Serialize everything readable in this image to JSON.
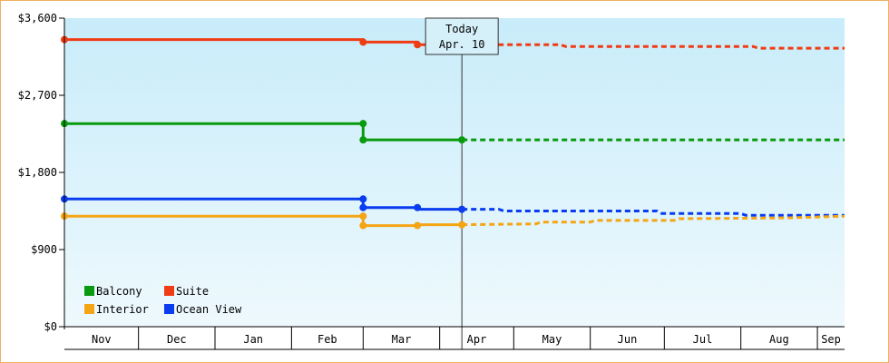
{
  "chart_data": {
    "type": "line",
    "y_ticks": [
      {
        "value": 0,
        "label": "$0"
      },
      {
        "value": 900,
        "label": "$900"
      },
      {
        "value": 1800,
        "label": "$1,800"
      },
      {
        "value": 2700,
        "label": "$2,700"
      },
      {
        "value": 3600,
        "label": "$3,600"
      }
    ],
    "ylim": [
      0,
      3600
    ],
    "xlim": [
      "2023-11-01",
      "2024-09-12"
    ],
    "months": [
      {
        "label": "Nov",
        "start": "2023-11-01",
        "end": "2023-12-01"
      },
      {
        "label": "Dec",
        "start": "2023-12-01",
        "end": "2024-01-01"
      },
      {
        "label": "Jan",
        "start": "2024-01-01",
        "end": "2024-02-01"
      },
      {
        "label": "Feb",
        "start": "2024-02-01",
        "end": "2024-03-01"
      },
      {
        "label": "Mar",
        "start": "2024-03-01",
        "end": "2024-04-01"
      },
      {
        "label": "Apr",
        "start": "2024-04-01",
        "end": "2024-05-01"
      },
      {
        "label": "May",
        "start": "2024-05-01",
        "end": "2024-06-01"
      },
      {
        "label": "Jun",
        "start": "2024-06-01",
        "end": "2024-07-01"
      },
      {
        "label": "Jul",
        "start": "2024-07-01",
        "end": "2024-08-01"
      },
      {
        "label": "Aug",
        "start": "2024-08-01",
        "end": "2024-09-01"
      },
      {
        "label": "Sep",
        "start": "2024-09-01",
        "end": "2024-09-12"
      }
    ],
    "today": {
      "date": "2024-04-10",
      "label_line1": "Today",
      "label_line2": "Apr. 10"
    },
    "legend_position": "bottom-left",
    "gradient_colors": [
      "#c8ecfa",
      "#eef9fd"
    ],
    "series": [
      {
        "name": "Suite",
        "color": "#f03c14",
        "history": [
          [
            "2023-11-01",
            3350
          ],
          [
            "2024-03-01",
            3350
          ],
          [
            "2024-03-01",
            3320
          ],
          [
            "2024-03-23",
            3320
          ],
          [
            "2024-03-23",
            3290
          ],
          [
            "2024-04-10",
            3290
          ]
        ],
        "markers": [
          [
            "2023-11-01",
            3350
          ],
          [
            "2024-03-01",
            3320
          ],
          [
            "2024-03-23",
            3290
          ],
          [
            "2024-04-10",
            3290
          ]
        ],
        "forecast": [
          [
            "2024-04-10",
            3290
          ],
          [
            "2024-05-20",
            3290
          ],
          [
            "2024-05-22",
            3270
          ],
          [
            "2024-08-06",
            3270
          ],
          [
            "2024-08-08",
            3250
          ],
          [
            "2024-09-12",
            3250
          ]
        ]
      },
      {
        "name": "Balcony",
        "color": "#0a9a10",
        "history": [
          [
            "2023-11-01",
            2370
          ],
          [
            "2024-03-01",
            2370
          ],
          [
            "2024-03-01",
            2180
          ],
          [
            "2024-04-10",
            2180
          ]
        ],
        "markers": [
          [
            "2023-11-01",
            2370
          ],
          [
            "2024-03-01",
            2370
          ],
          [
            "2024-03-01",
            2180
          ],
          [
            "2024-04-10",
            2180
          ]
        ],
        "forecast": [
          [
            "2024-04-10",
            2180
          ],
          [
            "2024-09-12",
            2180
          ]
        ]
      },
      {
        "name": "Ocean View",
        "color": "#0a3cf0",
        "history": [
          [
            "2023-11-01",
            1490
          ],
          [
            "2024-03-01",
            1490
          ],
          [
            "2024-03-01",
            1390
          ],
          [
            "2024-03-23",
            1390
          ],
          [
            "2024-03-23",
            1370
          ],
          [
            "2024-04-10",
            1370
          ]
        ],
        "markers": [
          [
            "2023-11-01",
            1490
          ],
          [
            "2024-03-01",
            1490
          ],
          [
            "2024-03-01",
            1390
          ],
          [
            "2024-03-23",
            1390
          ],
          [
            "2024-04-10",
            1370
          ]
        ],
        "forecast": [
          [
            "2024-04-10",
            1370
          ],
          [
            "2024-04-25",
            1370
          ],
          [
            "2024-04-27",
            1350
          ],
          [
            "2024-06-28",
            1350
          ],
          [
            "2024-06-30",
            1320
          ],
          [
            "2024-08-01",
            1320
          ],
          [
            "2024-08-03",
            1300
          ],
          [
            "2024-09-12",
            1300
          ]
        ]
      },
      {
        "name": "Interior",
        "color": "#f5a514",
        "history": [
          [
            "2023-11-01",
            1290
          ],
          [
            "2024-03-01",
            1290
          ],
          [
            "2024-03-01",
            1180
          ],
          [
            "2024-03-23",
            1180
          ],
          [
            "2024-03-23",
            1190
          ],
          [
            "2024-04-10",
            1190
          ]
        ],
        "markers": [
          [
            "2023-11-01",
            1290
          ],
          [
            "2024-03-01",
            1290
          ],
          [
            "2024-03-01",
            1180
          ],
          [
            "2024-03-23",
            1180
          ],
          [
            "2024-04-10",
            1190
          ]
        ],
        "forecast": [
          [
            "2024-04-10",
            1190
          ],
          [
            "2024-05-10",
            1200
          ],
          [
            "2024-05-12",
            1220
          ],
          [
            "2024-06-01",
            1220
          ],
          [
            "2024-06-03",
            1240
          ],
          [
            "2024-07-05",
            1240
          ],
          [
            "2024-07-07",
            1260
          ],
          [
            "2024-08-20",
            1270
          ],
          [
            "2024-09-12",
            1290
          ]
        ]
      }
    ],
    "legend": [
      {
        "name": "Balcony",
        "color": "#0a9a10"
      },
      {
        "name": "Suite",
        "color": "#f03c14"
      },
      {
        "name": "Interior",
        "color": "#f5a514"
      },
      {
        "name": "Ocean View",
        "color": "#0a3cf0"
      }
    ]
  }
}
